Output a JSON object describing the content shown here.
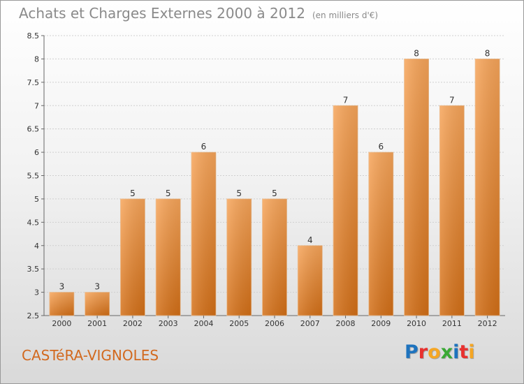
{
  "header": {
    "title": "Achats et Charges Externes 2000 à 2012",
    "subtitle": "(en milliers d'€)"
  },
  "footer": {
    "commune": "CASTéRA-VIGNOLES",
    "logo_letters": [
      "P",
      "r",
      "o",
      "x",
      "i",
      "t",
      "i"
    ],
    "logo_colors": [
      "#1e73be",
      "#e8312f",
      "#f5a623",
      "#3aa935",
      "#1e73be",
      "#e8312f",
      "#f5a623"
    ]
  },
  "chart_data": {
    "type": "bar",
    "title": "Achats et Charges Externes 2000 à 2012",
    "subtitle": "(en milliers d'€)",
    "categories": [
      "2000",
      "2001",
      "2002",
      "2003",
      "2004",
      "2005",
      "2006",
      "2007",
      "2008",
      "2009",
      "2010",
      "2011",
      "2012"
    ],
    "values": [
      3,
      3,
      5,
      5,
      6,
      5,
      5,
      4,
      7,
      6,
      8,
      7,
      8
    ],
    "data_labels": [
      "3",
      "3",
      "5",
      "5",
      "6",
      "5",
      "5",
      "4",
      "7",
      "6",
      "8",
      "7",
      "8"
    ],
    "ylim": [
      2.5,
      8.5
    ],
    "yticks": [
      "2.5",
      "3",
      "3.5",
      "4",
      "4.5",
      "5",
      "5.5",
      "6",
      "6.5",
      "7",
      "7.5",
      "8",
      "8.5"
    ],
    "grid": true,
    "legend": "none",
    "bar_color": "#f0913a"
  }
}
